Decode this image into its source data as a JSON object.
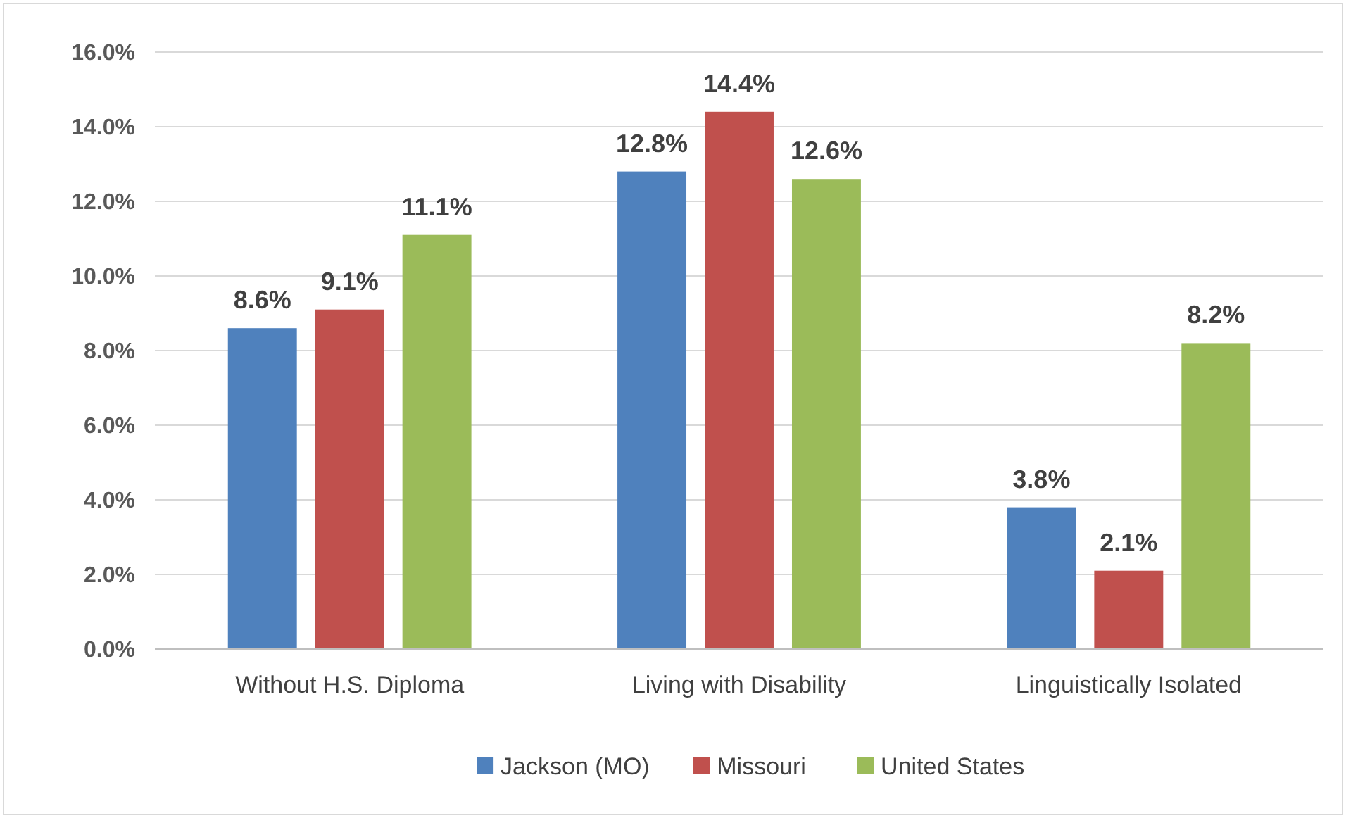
{
  "chart_data": {
    "type": "bar",
    "categories": [
      "Without H.S. Diploma",
      "Living with Disability",
      "Linguistically Isolated"
    ],
    "series": [
      {
        "name": "Jackson (MO)",
        "color": "#4f81bd",
        "values": [
          8.6,
          12.8,
          3.8
        ],
        "value_labels": [
          "8.6%",
          "12.8%",
          "3.8%"
        ]
      },
      {
        "name": "Missouri",
        "color": "#c0504d",
        "values": [
          9.1,
          14.4,
          2.1
        ],
        "value_labels": [
          "9.1%",
          "14.4%",
          "2.1%"
        ]
      },
      {
        "name": "United States",
        "color": "#9bbb59",
        "values": [
          11.1,
          12.6,
          8.2
        ],
        "value_labels": [
          "11.1%",
          "12.6%",
          "8.2%"
        ]
      }
    ],
    "ylim": [
      0,
      16
    ],
    "yticks": [
      {
        "value": 0,
        "label": "0.0%"
      },
      {
        "value": 2,
        "label": "2.0%"
      },
      {
        "value": 4,
        "label": "4.0%"
      },
      {
        "value": 6,
        "label": "6.0%"
      },
      {
        "value": 8,
        "label": "8.0%"
      },
      {
        "value": 10,
        "label": "10.0%"
      },
      {
        "value": 12,
        "label": "12.0%"
      },
      {
        "value": 14,
        "label": "14.0%"
      },
      {
        "value": 16,
        "label": "16.0%"
      }
    ],
    "grid": "y",
    "legend": "bottom"
  }
}
